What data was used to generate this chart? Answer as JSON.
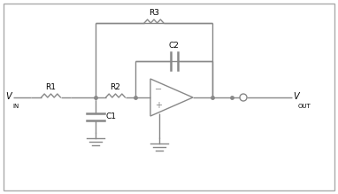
{
  "background_color": "#ffffff",
  "border_color": "#aaaaaa",
  "line_color": "#888888",
  "text_color": "#000000",
  "component_color": "#888888",
  "fig_width": 3.82,
  "fig_height": 2.19,
  "dpi": 100,
  "vin_label": "V",
  "vin_sub": "IN",
  "vout_label": "V",
  "vout_sub": "OUT",
  "r1_label": "R1",
  "r2_label": "R2",
  "r3_label": "R3",
  "c1_label": "C1",
  "c2_label": "C2",
  "lw": 1.0
}
